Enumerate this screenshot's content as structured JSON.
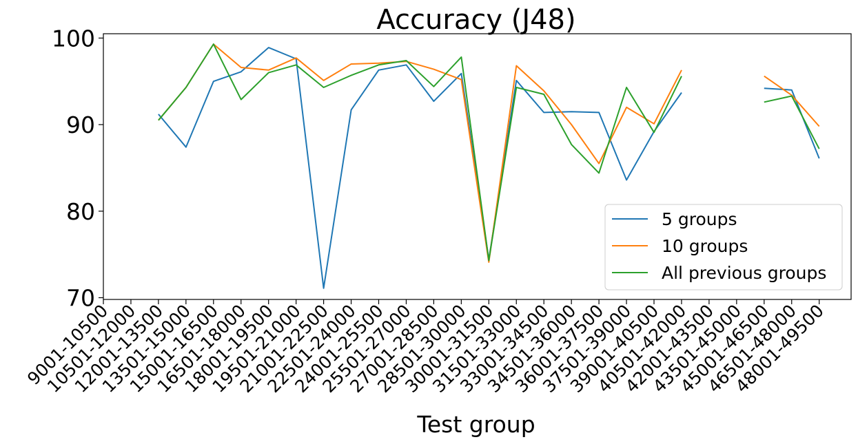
{
  "chart_data": {
    "type": "line",
    "title": "Accuracy (J48)",
    "xlabel": "Test group",
    "ylabel": "",
    "ylim": [
      69.8,
      100.5
    ],
    "yticks": [
      70,
      80,
      90,
      100
    ],
    "grid": false,
    "legend_position": "bottom-right",
    "categories": [
      "9001-10500",
      "10501-12000",
      "12001-13500",
      "13501-15000",
      "15001-16500",
      "16501-18000",
      "18001-19500",
      "19501-21000",
      "21001-22500",
      "22501-24000",
      "24001-25500",
      "25501-27000",
      "27001-28500",
      "28501-30000",
      "30001-31500",
      "31501-33000",
      "33001-34500",
      "34501-36000",
      "36001-37500",
      "37501-39000",
      "39001-40500",
      "40501-42000",
      "42001-43500",
      "43501-45000",
      "45001-46500",
      "46501-48000",
      "48001-49500"
    ],
    "series": [
      {
        "name": "5 groups",
        "color": "#1f77b4",
        "values": [
          null,
          null,
          91.2,
          87.4,
          95.0,
          96.1,
          98.9,
          97.6,
          71.1,
          91.7,
          96.3,
          96.9,
          92.7,
          95.9,
          74.4,
          95.1,
          91.4,
          91.5,
          91.4,
          83.6,
          89.2,
          93.7,
          null,
          null,
          94.2,
          94.0,
          86.1
        ]
      },
      {
        "name": "10 groups",
        "color": "#ff7f0e",
        "values": [
          null,
          null,
          90.5,
          94.3,
          99.3,
          96.6,
          96.3,
          97.7,
          95.1,
          97.0,
          97.1,
          97.3,
          96.4,
          95.2,
          74.1,
          96.8,
          93.9,
          90.0,
          85.5,
          92.0,
          90.1,
          96.3,
          null,
          null,
          95.6,
          93.4,
          89.8
        ]
      },
      {
        "name": "All previous groups",
        "color": "#2ca02c",
        "values": [
          null,
          null,
          90.5,
          94.3,
          99.3,
          92.9,
          96.0,
          96.9,
          94.3,
          95.7,
          96.9,
          97.4,
          94.4,
          97.8,
          74.3,
          94.3,
          93.5,
          87.7,
          84.4,
          94.3,
          89.1,
          95.6,
          null,
          null,
          92.6,
          93.3,
          87.2
        ]
      }
    ]
  }
}
